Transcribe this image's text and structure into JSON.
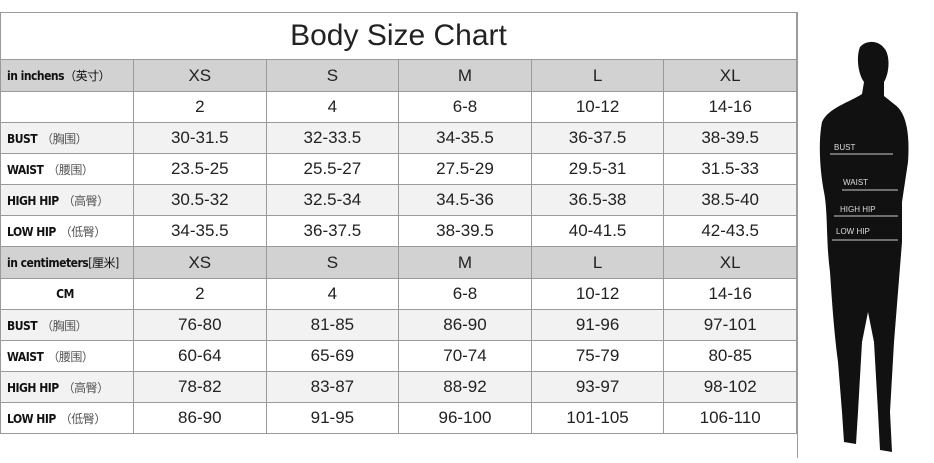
{
  "title": "Body Size Chart",
  "sizes": [
    "XS",
    "S",
    "M",
    "L",
    "XL"
  ],
  "inches": {
    "header": "in inchens",
    "header_cn": "（英寸）",
    "rows": [
      {
        "label": "",
        "cn": "",
        "values": [
          "2",
          "4",
          "6-8",
          "10-12",
          "14-16"
        ]
      },
      {
        "label": "BUST",
        "cn": "（胸围）",
        "values": [
          "30-31.5",
          "32-33.5",
          "34-35.5",
          "36-37.5",
          "38-39.5"
        ]
      },
      {
        "label": "WAIST",
        "cn": "（腰围）",
        "values": [
          "23.5-25",
          "25.5-27",
          "27.5-29",
          "29.5-31",
          "31.5-33"
        ]
      },
      {
        "label": "HIGH HIP",
        "cn": "（高臀）",
        "values": [
          "30.5-32",
          "32.5-34",
          "34.5-36",
          "36.5-38",
          "38.5-40"
        ]
      },
      {
        "label": "LOW HIP",
        "cn": "（低臀）",
        "values": [
          "34-35.5",
          "36-37.5",
          "38-39.5",
          "40-41.5",
          "42-43.5"
        ]
      }
    ]
  },
  "centimeters": {
    "header": "in centimeters",
    "header_cn": "[厘米]",
    "rows": [
      {
        "label": "CM",
        "cn": "",
        "values": [
          "2",
          "4",
          "6-8",
          "10-12",
          "14-16"
        ]
      },
      {
        "label": "BUST",
        "cn": "（胸围）",
        "values": [
          "76-80",
          "81-85",
          "86-90",
          "91-96",
          "97-101"
        ]
      },
      {
        "label": "WAIST",
        "cn": "（腰围）",
        "values": [
          "60-64",
          "65-69",
          "70-74",
          "75-79",
          "80-85"
        ]
      },
      {
        "label": "HIGH HIP",
        "cn": "（高臀）",
        "values": [
          "78-82",
          "83-87",
          "88-92",
          "93-97",
          "98-102"
        ]
      },
      {
        "label": "LOW HIP",
        "cn": "（低臀）",
        "values": [
          "86-90",
          "91-95",
          "96-100",
          "101-105",
          "106-110"
        ]
      }
    ]
  },
  "figure": {
    "labels": [
      "BUST",
      "WAIST",
      "HIGH HIP",
      "LOW HIP"
    ]
  }
}
